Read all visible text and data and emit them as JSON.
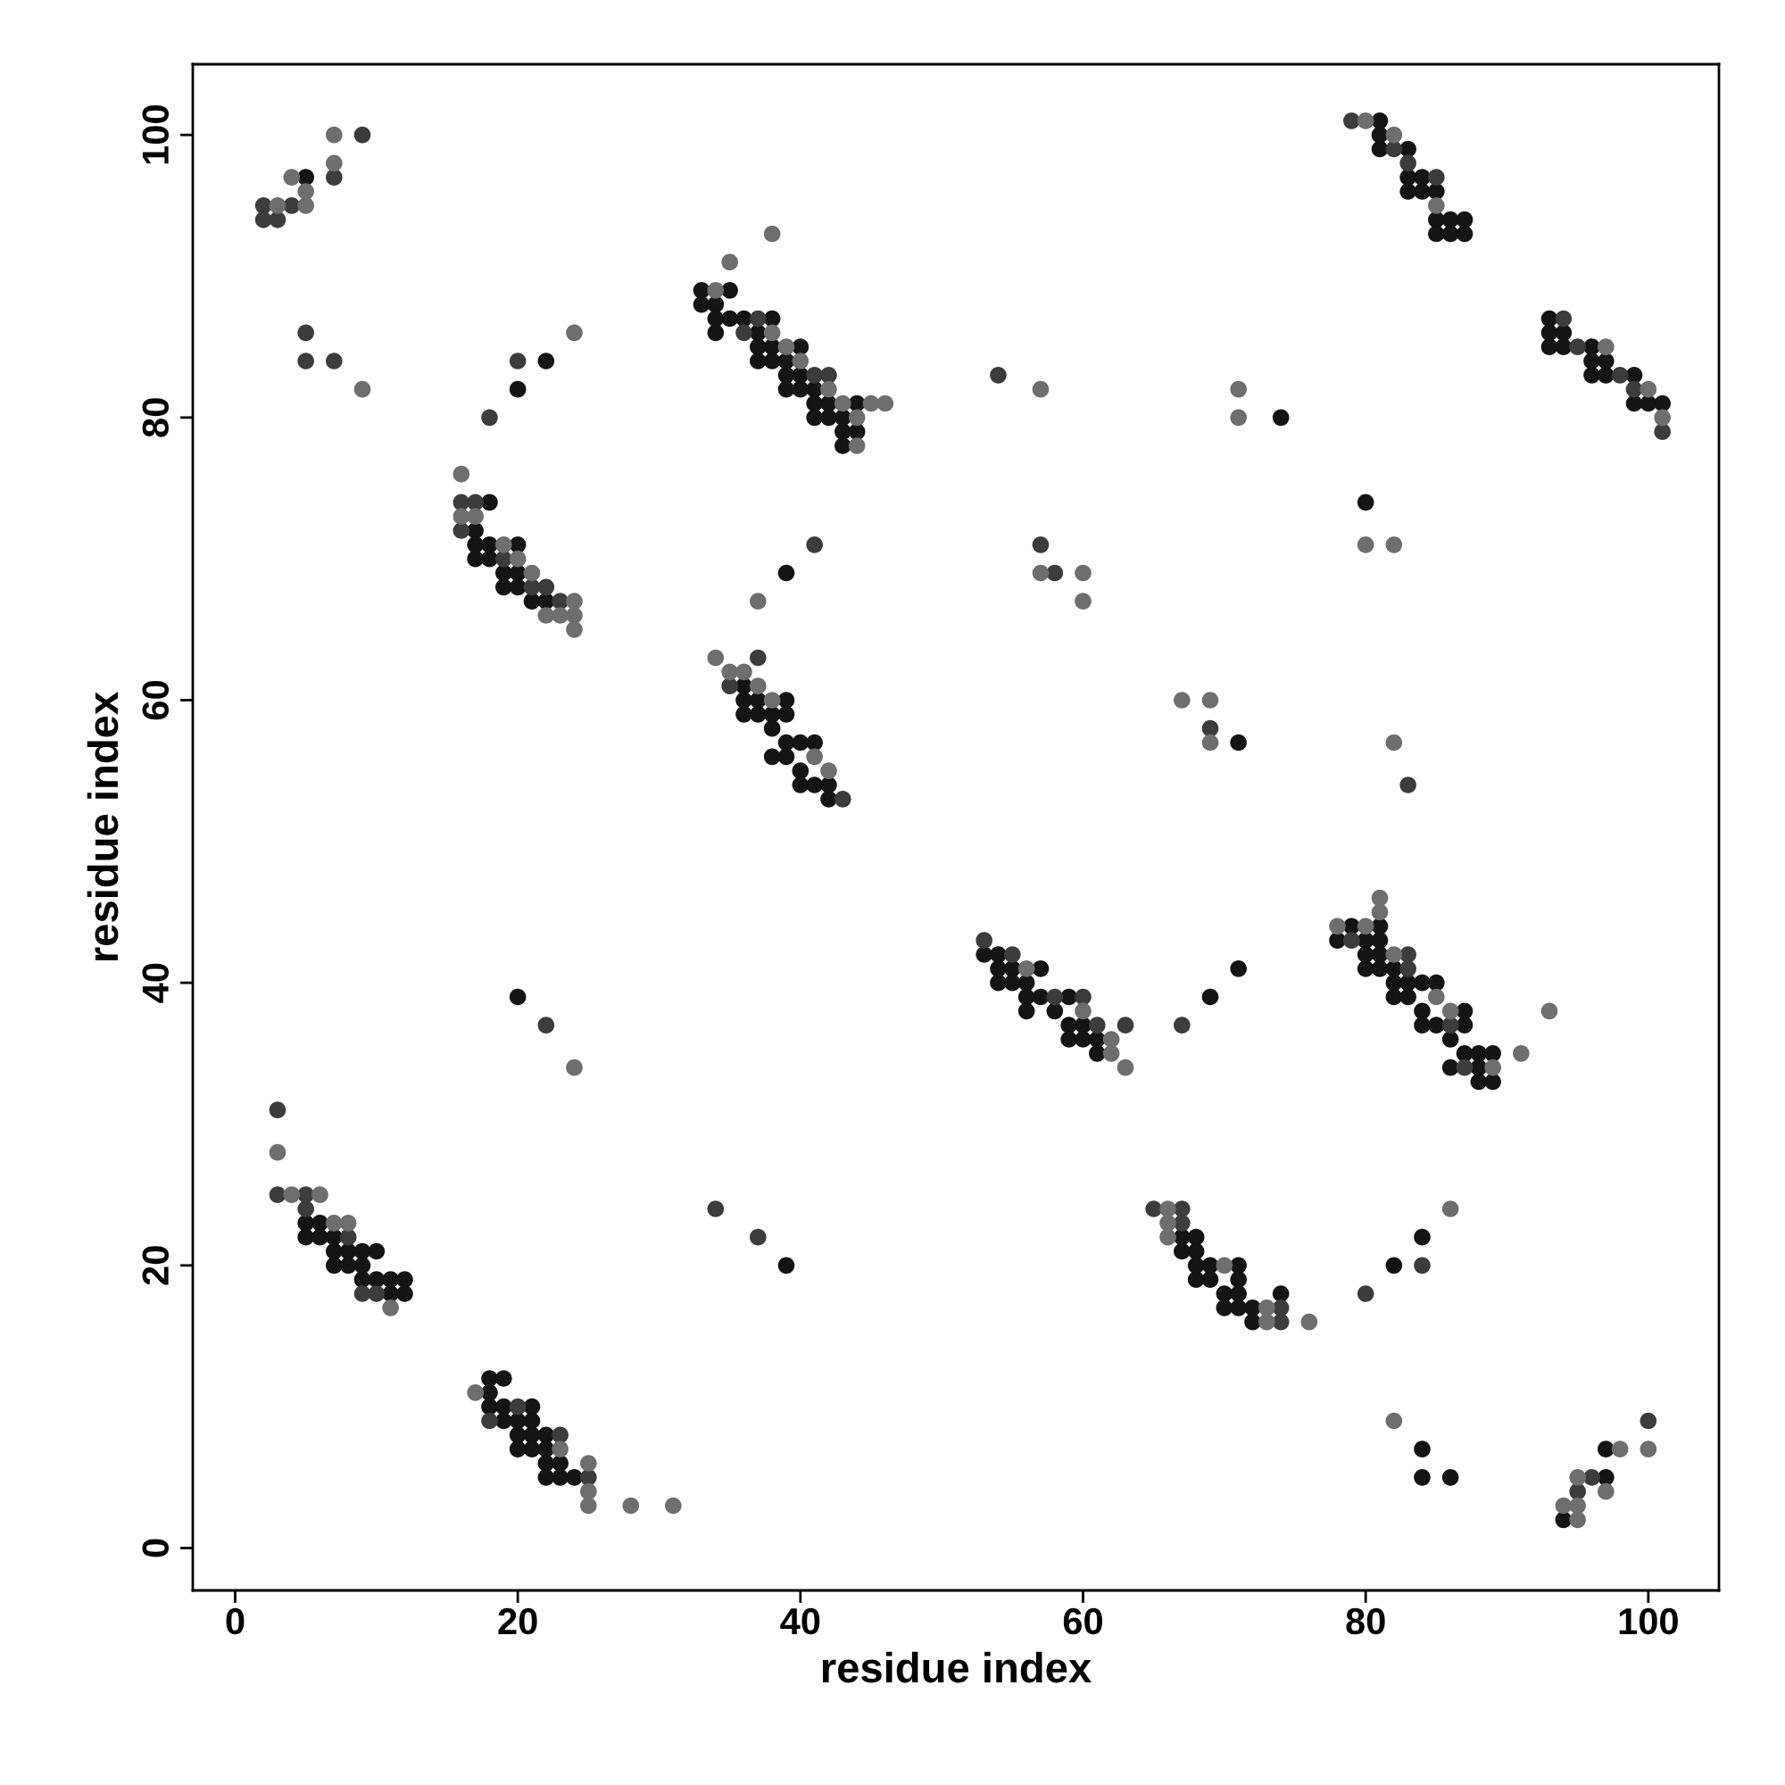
{
  "chart_data": {
    "type": "scatter",
    "xlabel": "residue index",
    "ylabel": "residue index",
    "xlim": [
      -3,
      105
    ],
    "ylim": [
      -3,
      105
    ],
    "xticks": [
      0,
      20,
      40,
      60,
      80,
      100
    ],
    "yticks": [
      0,
      20,
      40,
      60,
      80,
      100
    ],
    "grid": false,
    "marker": "circle",
    "series": [
      {
        "color": "#141414",
        "x": [
          5,
          20,
          22,
          17,
          17,
          17,
          18,
          18,
          18,
          19,
          19,
          20,
          20,
          20,
          21,
          22,
          33,
          33,
          34,
          34,
          34,
          35,
          35,
          36,
          37,
          37,
          37,
          38,
          38,
          38,
          39,
          39,
          39,
          40,
          40,
          40,
          41,
          41,
          41,
          42,
          42,
          43,
          43,
          43,
          44,
          44,
          36,
          36,
          36,
          37,
          37,
          38,
          38,
          38,
          39,
          39,
          39,
          39,
          40,
          40,
          40,
          41,
          41,
          42,
          42,
          39,
          53,
          54,
          54,
          54,
          55,
          55,
          56,
          56,
          56,
          57,
          57,
          58,
          59,
          59,
          59,
          60,
          60,
          61,
          61,
          20,
          69,
          71,
          78,
          79,
          80,
          80,
          80,
          81,
          81,
          81,
          81,
          82,
          82,
          82,
          83,
          83,
          84,
          84,
          84,
          85,
          85,
          86,
          86,
          87,
          87,
          87,
          88,
          88,
          88,
          89,
          89,
          5,
          5,
          6,
          6,
          7,
          7,
          7,
          8,
          8,
          9,
          9,
          9,
          10,
          10,
          11,
          11,
          12,
          12,
          18,
          18,
          18,
          19,
          19,
          19,
          20,
          20,
          20,
          21,
          21,
          21,
          21,
          22,
          22,
          22,
          22,
          23,
          23,
          24,
          39,
          67,
          67,
          68,
          68,
          68,
          68,
          69,
          69,
          70,
          70,
          71,
          71,
          71,
          71,
          72,
          72,
          74,
          82,
          84,
          84,
          84,
          86,
          94,
          97,
          97,
          81,
          81,
          81,
          83,
          83,
          83,
          84,
          84,
          85,
          85,
          85,
          86,
          86,
          87,
          87,
          93,
          93,
          93,
          94,
          94,
          96,
          96,
          96,
          97,
          97,
          99,
          99,
          100,
          101,
          74,
          80,
          71
        ],
        "values": [
          97,
          82,
          84,
          72,
          71,
          70,
          74,
          71,
          70,
          69,
          68,
          71,
          69,
          68,
          67,
          67,
          89,
          88,
          88,
          87,
          86,
          89,
          87,
          87,
          86,
          85,
          84,
          87,
          85,
          84,
          84,
          83,
          82,
          85,
          83,
          82,
          82,
          81,
          80,
          81,
          80,
          80,
          79,
          78,
          81,
          79,
          61,
          60,
          59,
          60,
          59,
          59,
          58,
          56,
          60,
          59,
          57,
          56,
          57,
          55,
          54,
          57,
          54,
          54,
          53,
          69,
          42,
          42,
          41,
          40,
          41,
          40,
          40,
          39,
          38,
          41,
          39,
          38,
          39,
          37,
          36,
          37,
          36,
          36,
          35,
          39,
          39,
          41,
          43,
          44,
          43,
          42,
          41,
          44,
          43,
          42,
          41,
          41,
          40,
          39,
          40,
          39,
          40,
          38,
          37,
          40,
          37,
          36,
          34,
          38,
          37,
          35,
          35,
          34,
          33,
          35,
          33,
          23,
          22,
          23,
          22,
          22,
          21,
          20,
          21,
          20,
          21,
          20,
          19,
          21,
          19,
          19,
          18,
          19,
          18,
          12,
          11,
          10,
          12,
          10,
          9,
          9,
          8,
          7,
          10,
          9,
          8,
          7,
          8,
          7,
          6,
          5,
          6,
          5,
          5,
          20,
          22,
          21,
          22,
          21,
          20,
          19,
          20,
          19,
          18,
          17,
          20,
          19,
          18,
          17,
          17,
          16,
          18,
          20,
          22,
          7,
          5,
          5,
          2,
          7,
          5,
          101,
          100,
          99,
          99,
          97,
          96,
          97,
          96,
          96,
          94,
          93,
          94,
          93,
          94,
          93,
          87,
          86,
          85,
          86,
          85,
          85,
          84,
          83,
          84,
          83,
          83,
          81,
          81,
          81,
          80,
          74,
          57
        ]
      },
      {
        "color": "#3c3c3c",
        "x": [
          2,
          2,
          3,
          4,
          7,
          9,
          5,
          5,
          7,
          16,
          16,
          17,
          19,
          21,
          22,
          23,
          18,
          20,
          36,
          37,
          41,
          42,
          35,
          37,
          43,
          41,
          53,
          55,
          58,
          60,
          61,
          63,
          22,
          67,
          79,
          83,
          83,
          86,
          87,
          3,
          3,
          5,
          5,
          8,
          9,
          10,
          18,
          20,
          23,
          25,
          34,
          37,
          65,
          67,
          67,
          74,
          74,
          80,
          84,
          95,
          96,
          100,
          79,
          82,
          83,
          85,
          94,
          95,
          98,
          99,
          101,
          54,
          57,
          58,
          69,
          83
        ],
        "values": [
          95,
          94,
          94,
          95,
          97,
          100,
          86,
          84,
          84,
          74,
          72,
          74,
          70,
          68,
          68,
          67,
          80,
          84,
          86,
          87,
          83,
          83,
          61,
          63,
          53,
          71,
          43,
          42,
          39,
          39,
          37,
          37,
          37,
          37,
          43,
          42,
          41,
          37,
          34,
          31,
          25,
          25,
          24,
          22,
          18,
          18,
          9,
          10,
          8,
          5,
          24,
          22,
          24,
          24,
          23,
          17,
          16,
          18,
          20,
          4,
          5,
          9,
          101,
          99,
          98,
          97,
          87,
          85,
          83,
          82,
          79,
          83,
          71,
          69,
          58,
          54
        ]
      },
      {
        "color": "#6e6e6e",
        "x": [
          3,
          4,
          5,
          5,
          7,
          7,
          9,
          16,
          16,
          17,
          19,
          20,
          21,
          22,
          23,
          24,
          24,
          24,
          24,
          34,
          35,
          38,
          38,
          39,
          40,
          42,
          43,
          44,
          44,
          45,
          46,
          34,
          35,
          36,
          37,
          38,
          41,
          42,
          37,
          56,
          60,
          62,
          62,
          63,
          24,
          91,
          93,
          78,
          80,
          81,
          81,
          82,
          85,
          86,
          89,
          3,
          4,
          6,
          7,
          8,
          11,
          17,
          23,
          25,
          25,
          25,
          28,
          31,
          66,
          66,
          66,
          70,
          73,
          73,
          76,
          86,
          82,
          94,
          95,
          95,
          95,
          97,
          98,
          100,
          80,
          82,
          85,
          97,
          100,
          101,
          57,
          71,
          71,
          80,
          82,
          57,
          60,
          60,
          67,
          69,
          69,
          82
        ],
        "values": [
          95,
          97,
          96,
          95,
          100,
          98,
          82,
          76,
          73,
          73,
          71,
          70,
          69,
          66,
          66,
          67,
          66,
          65,
          86,
          89,
          91,
          86,
          93,
          85,
          84,
          82,
          81,
          80,
          78,
          81,
          81,
          63,
          62,
          62,
          61,
          60,
          56,
          55,
          67,
          41,
          38,
          36,
          35,
          34,
          34,
          35,
          38,
          44,
          44,
          46,
          45,
          42,
          39,
          38,
          34,
          28,
          25,
          25,
          23,
          23,
          17,
          11,
          7,
          6,
          4,
          3,
          3,
          3,
          24,
          23,
          22,
          20,
          17,
          16,
          16,
          24,
          9,
          3,
          5,
          3,
          2,
          4,
          7,
          7,
          101,
          100,
          95,
          85,
          82,
          80,
          82,
          82,
          80,
          71,
          71,
          69,
          69,
          67,
          60,
          60,
          57,
          57
        ]
      }
    ]
  }
}
